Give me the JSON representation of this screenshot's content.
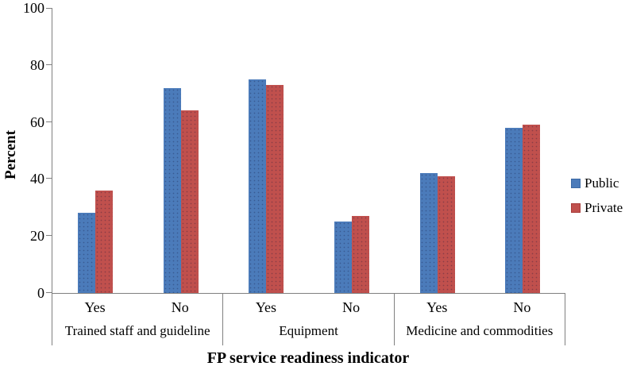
{
  "chart_data": {
    "type": "bar",
    "title": "",
    "xlabel": "FP service readiness indicator",
    "ylabel": "Percent",
    "ylim": [
      0,
      100
    ],
    "yticks": [
      0,
      20,
      40,
      60,
      80,
      100
    ],
    "grid": false,
    "legend_position": "right",
    "axis_color": "#808080",
    "groups": [
      {
        "label": "Trained staff and guideline",
        "categories": [
          "Yes",
          "No"
        ],
        "series": [
          {
            "name": "Public",
            "values": [
              28,
              72
            ]
          },
          {
            "name": "Private",
            "values": [
              36,
              64
            ]
          }
        ]
      },
      {
        "label": "Equipment",
        "categories": [
          "Yes",
          "No"
        ],
        "series": [
          {
            "name": "Public",
            "values": [
              75,
              25
            ]
          },
          {
            "name": "Private",
            "values": [
              73,
              27
            ]
          }
        ]
      },
      {
        "label": "Medicine and commodities",
        "categories": [
          "Yes",
          "No"
        ],
        "series": [
          {
            "name": "Public",
            "values": [
              42,
              58
            ]
          },
          {
            "name": "Private",
            "values": [
              41,
              59
            ]
          }
        ]
      }
    ],
    "legend": [
      {
        "label": "Public",
        "color": "#4b7bba",
        "border": "#3d6aa5"
      },
      {
        "label": "Private",
        "color": "#c0504d",
        "border": "#a83d3b"
      }
    ]
  }
}
